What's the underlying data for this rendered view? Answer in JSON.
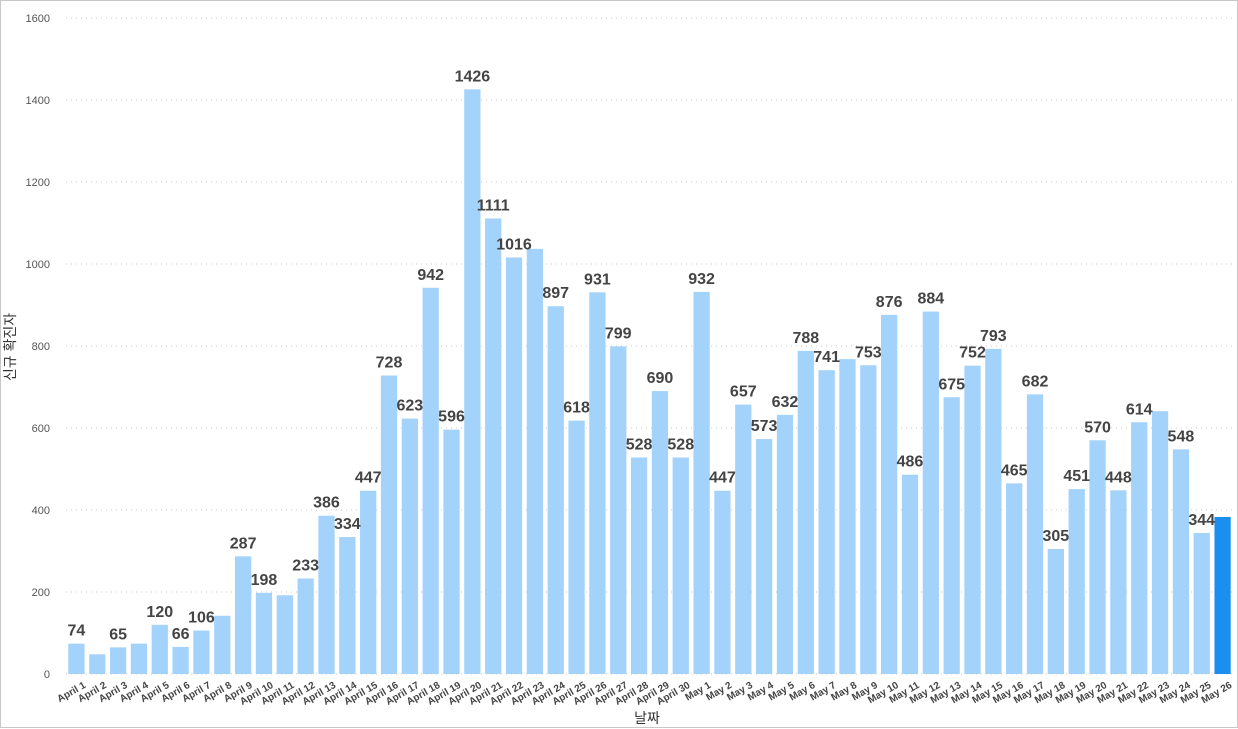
{
  "chart_data": {
    "type": "bar",
    "title": "",
    "xlabel": "날짜",
    "ylabel": "신규 확진자",
    "ylim": [
      0,
      1600
    ],
    "yticks": [
      0,
      200,
      400,
      600,
      800,
      1000,
      1200,
      1400,
      1600
    ],
    "grid": true,
    "categories": [
      "April 1",
      "April 2",
      "April 3",
      "April 4",
      "April 5",
      "April 6",
      "April 7",
      "April 8",
      "April 9",
      "April 10",
      "April 11",
      "April 12",
      "April 13",
      "April 14",
      "April 15",
      "April 16",
      "April 17",
      "April 18",
      "April 19",
      "April 20",
      "April 21",
      "April 22",
      "April 23",
      "April 24",
      "April 25",
      "April 26",
      "April 27",
      "April 28",
      "April 29",
      "April 30",
      "May 1",
      "May 2",
      "May 3",
      "May 4",
      "May 5",
      "May 6",
      "May 7",
      "May 8",
      "May 9",
      "May 10",
      "May 11",
      "May 12",
      "May 13",
      "May 14",
      "May 15",
      "May 16",
      "May 17",
      "May 18",
      "May 19",
      "May 20",
      "May 21",
      "May 22",
      "May 23",
      "May 24",
      "May 25",
      "May 26"
    ],
    "values": [
      74,
      48,
      65,
      74,
      120,
      66,
      106,
      142,
      287,
      198,
      192,
      233,
      386,
      334,
      447,
      728,
      623,
      942,
      596,
      1426,
      1111,
      1016,
      1037,
      897,
      618,
      931,
      799,
      528,
      690,
      528,
      932,
      447,
      657,
      573,
      632,
      788,
      741,
      768,
      753,
      876,
      486,
      884,
      675,
      752,
      793,
      465,
      682,
      305,
      451,
      570,
      448,
      614,
      641,
      548,
      344,
      383
    ],
    "labeled": [
      true,
      false,
      true,
      false,
      true,
      true,
      true,
      false,
      true,
      true,
      false,
      true,
      true,
      true,
      true,
      true,
      true,
      true,
      true,
      true,
      true,
      true,
      false,
      true,
      true,
      true,
      true,
      true,
      true,
      true,
      true,
      true,
      true,
      true,
      true,
      true,
      true,
      false,
      true,
      true,
      true,
      true,
      true,
      true,
      true,
      true,
      true,
      true,
      true,
      true,
      true,
      true,
      false,
      true,
      true,
      false
    ],
    "colors": {
      "bar": "#a3d2fb",
      "highlight": "#1a8ff0",
      "label": "#444444"
    },
    "highlight_index": 55
  }
}
